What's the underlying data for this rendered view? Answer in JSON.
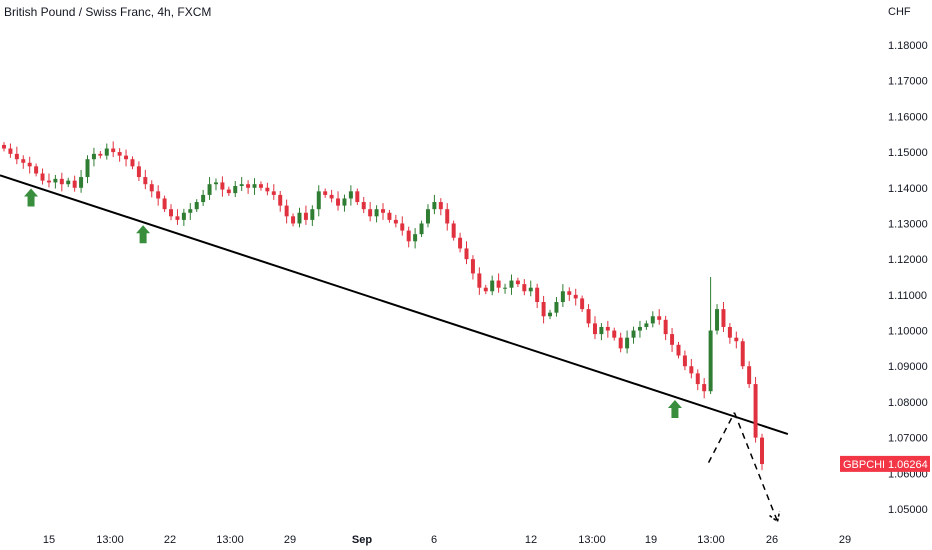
{
  "header": {
    "title": "British Pound / Swiss Franc, 4h, FXCM"
  },
  "axis": {
    "currency": "CHF"
  },
  "price_badge": {
    "symbol": "GBPCHF",
    "value": "1.06264"
  },
  "colors": {
    "up": "#2e7d32",
    "down": "#e0313e",
    "trendline": "#000000",
    "arrow": "#388e3c",
    "badge": "#f23645"
  },
  "chart_data": {
    "type": "candlestick",
    "ylim": [
      1.043,
      1.188
    ],
    "y_ticks": [
      "1.18000",
      "1.17000",
      "1.16000",
      "1.15000",
      "1.14000",
      "1.13000",
      "1.12000",
      "1.11000",
      "1.10000",
      "1.09000",
      "1.08000",
      "1.07000",
      "1.06000",
      "1.05000"
    ],
    "x_ticks": [
      {
        "label": "15",
        "bold": false
      },
      {
        "label": "13:00",
        "bold": false
      },
      {
        "label": "22",
        "bold": false
      },
      {
        "label": "13:00",
        "bold": false
      },
      {
        "label": "29",
        "bold": false
      },
      {
        "label": "Sep",
        "bold": true
      },
      {
        "label": "6",
        "bold": false
      },
      {
        "label": "12",
        "bold": false
      },
      {
        "label": "13:00",
        "bold": false
      },
      {
        "label": "19",
        "bold": false
      },
      {
        "label": "13:00",
        "bold": false
      },
      {
        "label": "26",
        "bold": false
      },
      {
        "label": "29",
        "bold": false
      }
    ],
    "price_path": [
      1.151,
      1.1495,
      1.148,
      1.147,
      1.146,
      1.144,
      1.142,
      1.1415,
      1.1425,
      1.141,
      1.142,
      1.14,
      1.143,
      1.148,
      1.1495,
      1.149,
      1.151,
      1.15,
      1.149,
      1.148,
      1.146,
      1.143,
      1.141,
      1.139,
      1.137,
      1.134,
      1.132,
      1.131,
      1.133,
      1.134,
      1.136,
      1.138,
      1.141,
      1.1415,
      1.1395,
      1.1385,
      1.1405,
      1.141,
      1.14,
      1.141,
      1.14,
      1.139,
      1.138,
      1.135,
      1.132,
      1.13,
      1.133,
      1.131,
      1.134,
      1.139,
      1.138,
      1.137,
      1.135,
      1.137,
      1.139,
      1.136,
      1.134,
      1.132,
      1.134,
      1.133,
      1.131,
      1.13,
      1.128,
      1.125,
      1.127,
      1.13,
      1.134,
      1.136,
      1.134,
      1.13,
      1.126,
      1.123,
      1.12,
      1.116,
      1.112,
      1.111,
      1.114,
      1.112,
      1.112,
      1.114,
      1.113,
      1.111,
      1.112,
      1.108,
      1.104,
      1.105,
      1.108,
      1.111,
      1.11,
      1.109,
      1.106,
      1.102,
      1.099,
      1.101,
      1.1,
      1.098,
      1.095,
      1.098,
      1.1,
      1.101,
      1.102,
      1.104,
      1.103,
      1.099,
      1.096,
      1.093,
      1.09,
      1.088,
      1.085,
      1.083,
      1.1,
      1.106,
      1.101,
      1.098,
      1.097,
      1.09,
      1.085,
      1.07,
      1.0626
    ],
    "trendline": [
      [
        0,
        1.1435
      ],
      [
        0.914,
        1.071
      ]
    ],
    "touch_arrows": [
      0.036,
      0.166,
      0.783
    ],
    "projection": [
      [
        0.822,
        1.063
      ],
      [
        0.852,
        1.077
      ],
      [
        0.902,
        1.0465
      ]
    ]
  }
}
